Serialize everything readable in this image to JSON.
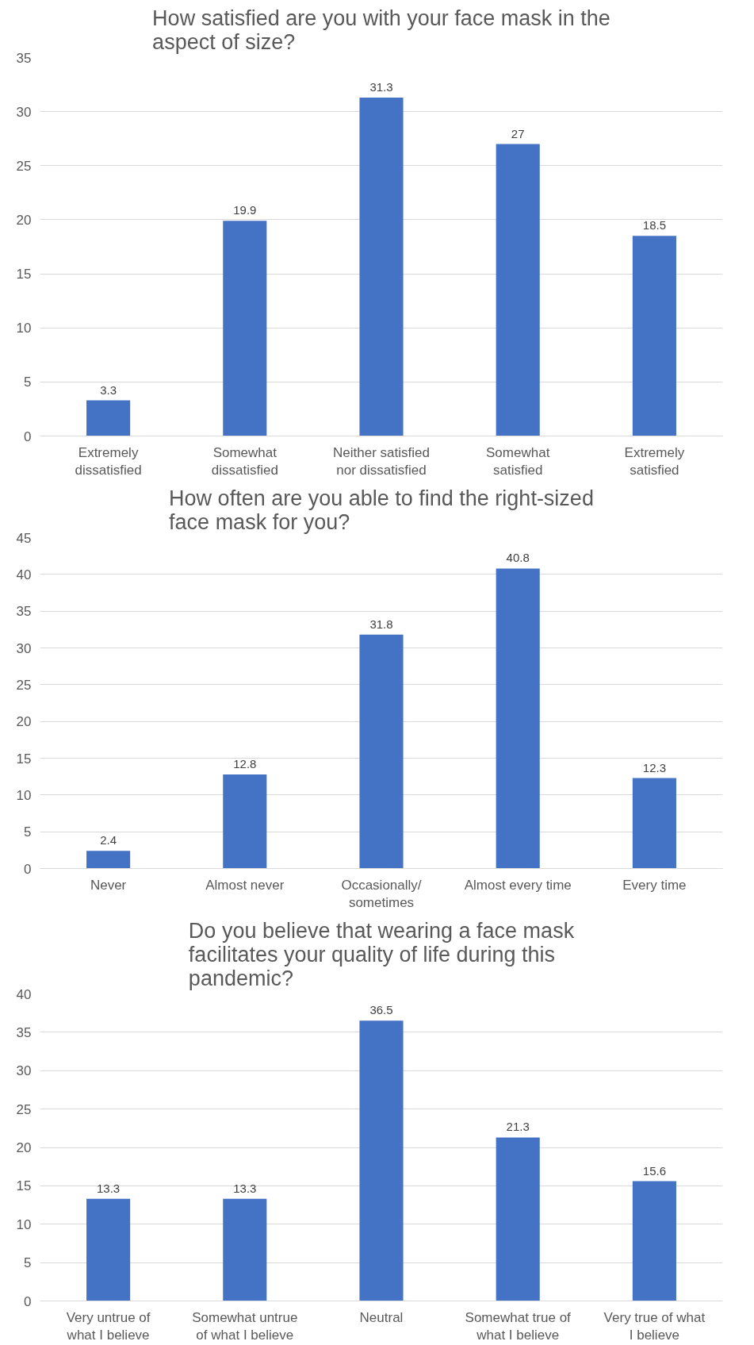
{
  "chart_data": [
    {
      "type": "bar",
      "title": "How satisfied are you with your face mask in the aspect of size?",
      "categories": [
        "Extremely dissatisfied",
        "Somewhat dissatisfied",
        "Neither satisfied nor dissatisfied",
        "Somewhat satisfied",
        "Extremely satisfied"
      ],
      "values": [
        3.3,
        19.9,
        31.3,
        27,
        18.5
      ],
      "color": "#4472c4",
      "ylim": [
        0,
        35
      ],
      "yticks": [
        0,
        5,
        10,
        15,
        20,
        25,
        30,
        35
      ],
      "grid": "y",
      "data_labels": true
    },
    {
      "type": "bar",
      "title": "How often are you able to find the right-sized face mask for you?",
      "categories": [
        "Never",
        "Almost never",
        "Occasionally/ sometimes",
        "Almost every time",
        "Every time"
      ],
      "values": [
        2.4,
        12.8,
        31.8,
        40.8,
        12.3
      ],
      "color": "#4472c4",
      "ylim": [
        0,
        45
      ],
      "yticks": [
        0,
        5,
        10,
        15,
        20,
        25,
        30,
        35,
        40,
        45
      ],
      "grid": "y",
      "data_labels": true
    },
    {
      "type": "bar",
      "title": "Do you believe that wearing a face mask facilitates your quality of life during this pandemic?",
      "categories": [
        "Very untrue of what I believe",
        "Somewhat untrue of what I believe",
        "Neutral",
        "Somewhat true of what I believe",
        "Very true of what I believe"
      ],
      "values": [
        13.3,
        13.3,
        36.5,
        21.3,
        15.6
      ],
      "color": "#4472c4",
      "ylim": [
        0,
        40
      ],
      "yticks": [
        0,
        5,
        10,
        15,
        20,
        25,
        30,
        35,
        40
      ],
      "grid": "y",
      "data_labels": true
    }
  ]
}
